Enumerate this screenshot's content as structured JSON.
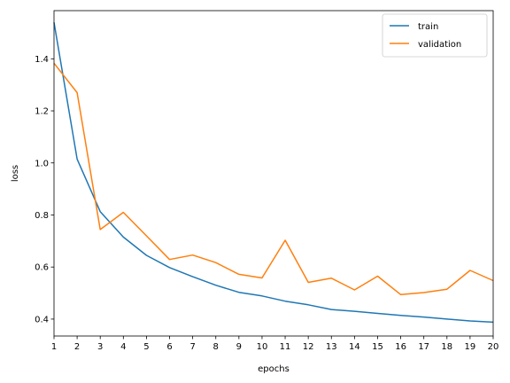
{
  "chart_data": {
    "type": "line",
    "xlabel": "epochs",
    "ylabel": "loss",
    "xlim": [
      1,
      20
    ],
    "ylim": [
      0.335,
      1.585
    ],
    "x_ticks": [
      1,
      2,
      3,
      4,
      5,
      6,
      7,
      8,
      9,
      10,
      11,
      12,
      13,
      14,
      15,
      16,
      17,
      18,
      19,
      20
    ],
    "y_ticks": [
      0.4,
      0.6,
      0.8,
      1.0,
      1.2,
      1.4
    ],
    "y_tick_labels": [
      "0.4",
      "0.6",
      "0.8",
      "1.0",
      "1.2",
      "1.4"
    ],
    "grid": false,
    "legend_position": "top-right",
    "x": [
      1,
      2,
      3,
      4,
      5,
      6,
      7,
      8,
      9,
      10,
      11,
      12,
      13,
      14,
      15,
      16,
      17,
      18,
      19,
      20
    ],
    "series": [
      {
        "name": "train",
        "color": "#1f77b4",
        "values": [
          1.54,
          1.015,
          0.813,
          0.715,
          0.645,
          0.598,
          0.563,
          0.53,
          0.503,
          0.489,
          0.469,
          0.455,
          0.437,
          0.43,
          0.422,
          0.414,
          0.408,
          0.4,
          0.393,
          0.388
        ]
      },
      {
        "name": "validation",
        "color": "#ff7f0e",
        "values": [
          1.383,
          1.27,
          0.744,
          0.81,
          0.72,
          0.629,
          0.646,
          0.617,
          0.572,
          0.558,
          0.703,
          0.541,
          0.557,
          0.512,
          0.565,
          0.494,
          0.502,
          0.515,
          0.587,
          0.548
        ]
      }
    ]
  }
}
